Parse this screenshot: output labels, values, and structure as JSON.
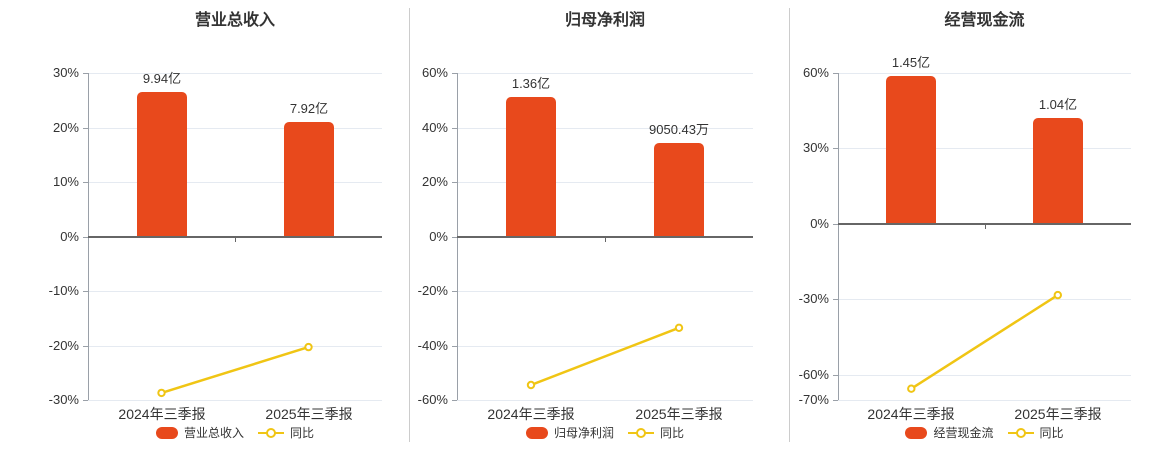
{
  "colors": {
    "bar": "#e8491c",
    "line": "#f0c514",
    "marker_fill": "#ffffff",
    "grid": "#e5eaf1",
    "zero_axis": "#666666",
    "axis_line": "#9aa0a8",
    "text": "#333333",
    "divider": "#cccccc",
    "background": "#ffffff"
  },
  "chart_data": [
    {
      "type": "bar+line",
      "title": "营业总收入",
      "categories": [
        "2024年三季报",
        "2025年三季报"
      ],
      "bar": {
        "name": "营业总收入",
        "labels": [
          "9.94亿",
          "7.92亿"
        ],
        "display_pct": [
          26.5,
          21.0
        ]
      },
      "line": {
        "name": "同比",
        "values_pct": [
          -28.7,
          -20.3
        ]
      },
      "ylim": [
        -30,
        30
      ],
      "yticks": [
        {
          "v": 30,
          "label": "30%"
        },
        {
          "v": 20,
          "label": "20%"
        },
        {
          "v": 10,
          "label": "10%"
        },
        {
          "v": 0,
          "label": "0%"
        },
        {
          "v": -10,
          "label": "-10%"
        },
        {
          "v": -20,
          "label": "-20%"
        },
        {
          "v": -30,
          "label": "-30%"
        }
      ],
      "grid": true,
      "legend_position": "bottom"
    },
    {
      "type": "bar+line",
      "title": "归母净利润",
      "categories": [
        "2024年三季报",
        "2025年三季报"
      ],
      "bar": {
        "name": "归母净利润",
        "labels": [
          "1.36亿",
          "9050.43万"
        ],
        "display_pct": [
          51.3,
          34.2
        ]
      },
      "line": {
        "name": "同比",
        "values_pct": [
          -54.5,
          -33.5
        ]
      },
      "ylim": [
        -60,
        60
      ],
      "yticks": [
        {
          "v": 60,
          "label": "60%"
        },
        {
          "v": 40,
          "label": "40%"
        },
        {
          "v": 20,
          "label": "20%"
        },
        {
          "v": 0,
          "label": "0%"
        },
        {
          "v": -20,
          "label": "-20%"
        },
        {
          "v": -40,
          "label": "-40%"
        },
        {
          "v": -60,
          "label": "-60%"
        }
      ],
      "grid": true,
      "legend_position": "bottom"
    },
    {
      "type": "bar+line",
      "title": "经营现金流",
      "categories": [
        "2024年三季报",
        "2025年三季报"
      ],
      "bar": {
        "name": "经营现金流",
        "labels": [
          "1.45亿",
          "1.04亿"
        ],
        "display_pct": [
          59.0,
          42.0
        ]
      },
      "line": {
        "name": "同比",
        "values_pct": [
          -65.5,
          -28.3
        ]
      },
      "ylim": [
        -70,
        60
      ],
      "yticks": [
        {
          "v": 60,
          "label": "60%"
        },
        {
          "v": 30,
          "label": "30%"
        },
        {
          "v": 0,
          "label": "0%"
        },
        {
          "v": -30,
          "label": "-30%"
        },
        {
          "v": -60,
          "label": "-60%"
        },
        {
          "v": -70,
          "label": "-70%"
        }
      ],
      "grid": true,
      "legend_position": "bottom"
    }
  ]
}
